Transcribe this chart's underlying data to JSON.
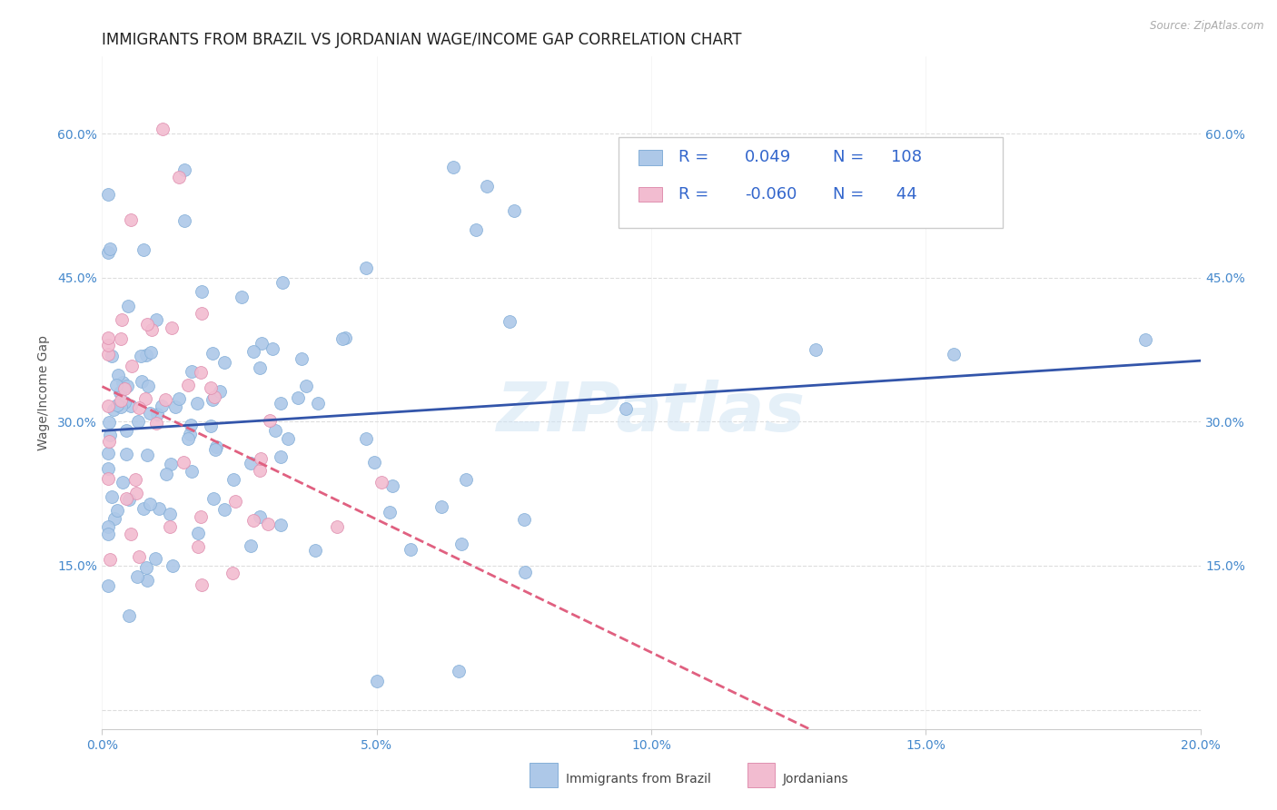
{
  "title": "IMMIGRANTS FROM BRAZIL VS JORDANIAN WAGE/INCOME GAP CORRELATION CHART",
  "source": "Source: ZipAtlas.com",
  "ylabel_label": "Wage/Income Gap",
  "xlim": [
    0.0,
    0.2
  ],
  "ylim": [
    -0.02,
    0.68
  ],
  "brazil_R": 0.049,
  "brazil_N": 108,
  "jordan_R": -0.06,
  "jordan_N": 44,
  "brazil_color": "#adc8e8",
  "jordan_color": "#f2bcd0",
  "brazil_edge_color": "#85afd8",
  "jordan_edge_color": "#e090b0",
  "trendline_brazil_color": "#3355aa",
  "trendline_jordan_color": "#e06080",
  "watermark": "ZIPatlas",
  "background_color": "#ffffff",
  "grid_color": "#dddddd",
  "title_fontsize": 12,
  "axis_label_fontsize": 10,
  "tick_fontsize": 10,
  "legend_fontsize": 13,
  "marker_size": 100
}
